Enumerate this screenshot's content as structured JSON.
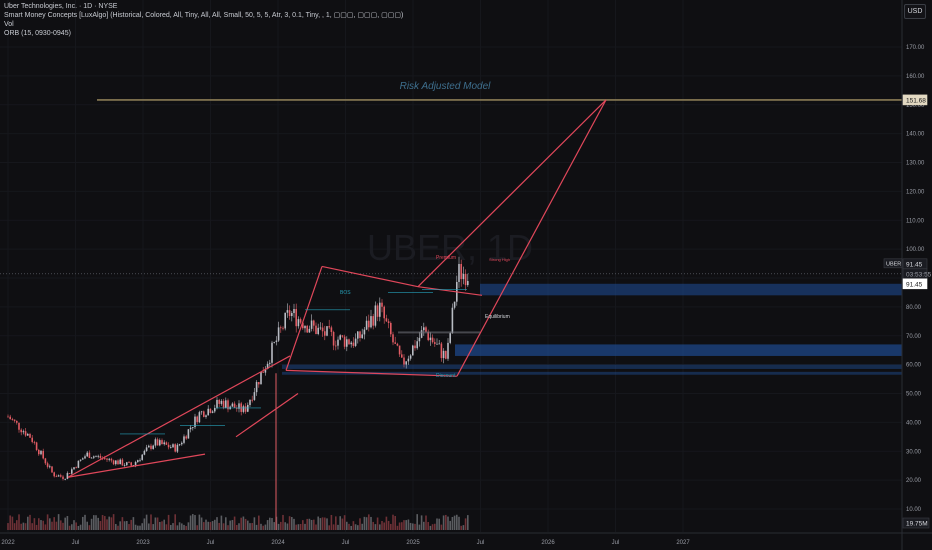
{
  "header": {
    "symbol_line": "Uber Technologies, Inc. · 1D · NYSE",
    "indicator_smc": "Smart Money Concepts [LuxAlgo] (Historical, Colored, All, Tiny, All, All, Small, 50, 5, 5, Atr, 3, 0.1, Tiny, , 1, ▢▢▢, ▢▢▢, ▢▢▢)",
    "indicator_vol": "Vol",
    "indicator_orb": "ORB (15, 0930-0945)"
  },
  "currency": "USD",
  "watermark": "UBER, 1D",
  "model_label": "Risk Adjusted Model",
  "labels": {
    "premium": "Premium",
    "equilibrium": "Equilibrium",
    "discount": "Discount",
    "strong_high": "Strong High",
    "bos": "BOS"
  },
  "price_tags": {
    "target": "151.68",
    "ticker": "UBER",
    "last": "91.45",
    "countdown": "03:53:55",
    "last2": "91.45",
    "volume": "19.75M"
  },
  "colors": {
    "background": "#0f0f12",
    "candle_up": "#b9bcc4",
    "candle_down": "#e25c64",
    "trendline": "#e0475a",
    "target_line": "#8a7b55",
    "zone_blue": "#1f4f99",
    "smc_cyan": "#26a0b8",
    "model_text": "#3e6f8e"
  },
  "chart_data": {
    "type": "line",
    "title": "",
    "y_axis_ticks": [
      170,
      160,
      150,
      140,
      130,
      120,
      110,
      100,
      90,
      80,
      70,
      60,
      50,
      40,
      30,
      20,
      10
    ],
    "y_tick_labels": [
      "170.00",
      "160.00",
      "150.00",
      "140.00",
      "130.00",
      "120.00",
      "110.00",
      "100.00",
      "90.00",
      "80.00",
      "70.00",
      "60.00",
      "50.00",
      "40.00",
      "30.00",
      "20.00",
      "10.00"
    ],
    "x_tick_labels": [
      "2022",
      "Jul",
      "2023",
      "Jul",
      "2024",
      "Jul",
      "2025",
      "Jul",
      "2026",
      "Jul",
      "2027"
    ],
    "ylim": [
      6,
      180
    ],
    "series": [
      {
        "name": "UBER close",
        "x": [
          "2022-01",
          "2022-03",
          "2022-05",
          "2022-06",
          "2022-08",
          "2022-10",
          "2022-12",
          "2023-02",
          "2023-04",
          "2023-06",
          "2023-08",
          "2023-10",
          "2023-12",
          "2024-02",
          "2024-04",
          "2024-06",
          "2024-08",
          "2024-10",
          "2024-12",
          "2025-02",
          "2025-04",
          "2025-05",
          "2025-06"
        ],
        "y": [
          42,
          35,
          22,
          21,
          29,
          27,
          25,
          33,
          31,
          43,
          47,
          44,
          61,
          78,
          73,
          69,
          68,
          80,
          60,
          72,
          62,
          92,
          91.45
        ]
      }
    ],
    "annotations": {
      "target_price": 151.68,
      "last_price": 91.45,
      "premium_zone": [
        84,
        88
      ],
      "discount_zones": [
        [
          63,
          67
        ],
        [
          58.5,
          60
        ],
        [
          56.5,
          57.5
        ]
      ]
    }
  }
}
